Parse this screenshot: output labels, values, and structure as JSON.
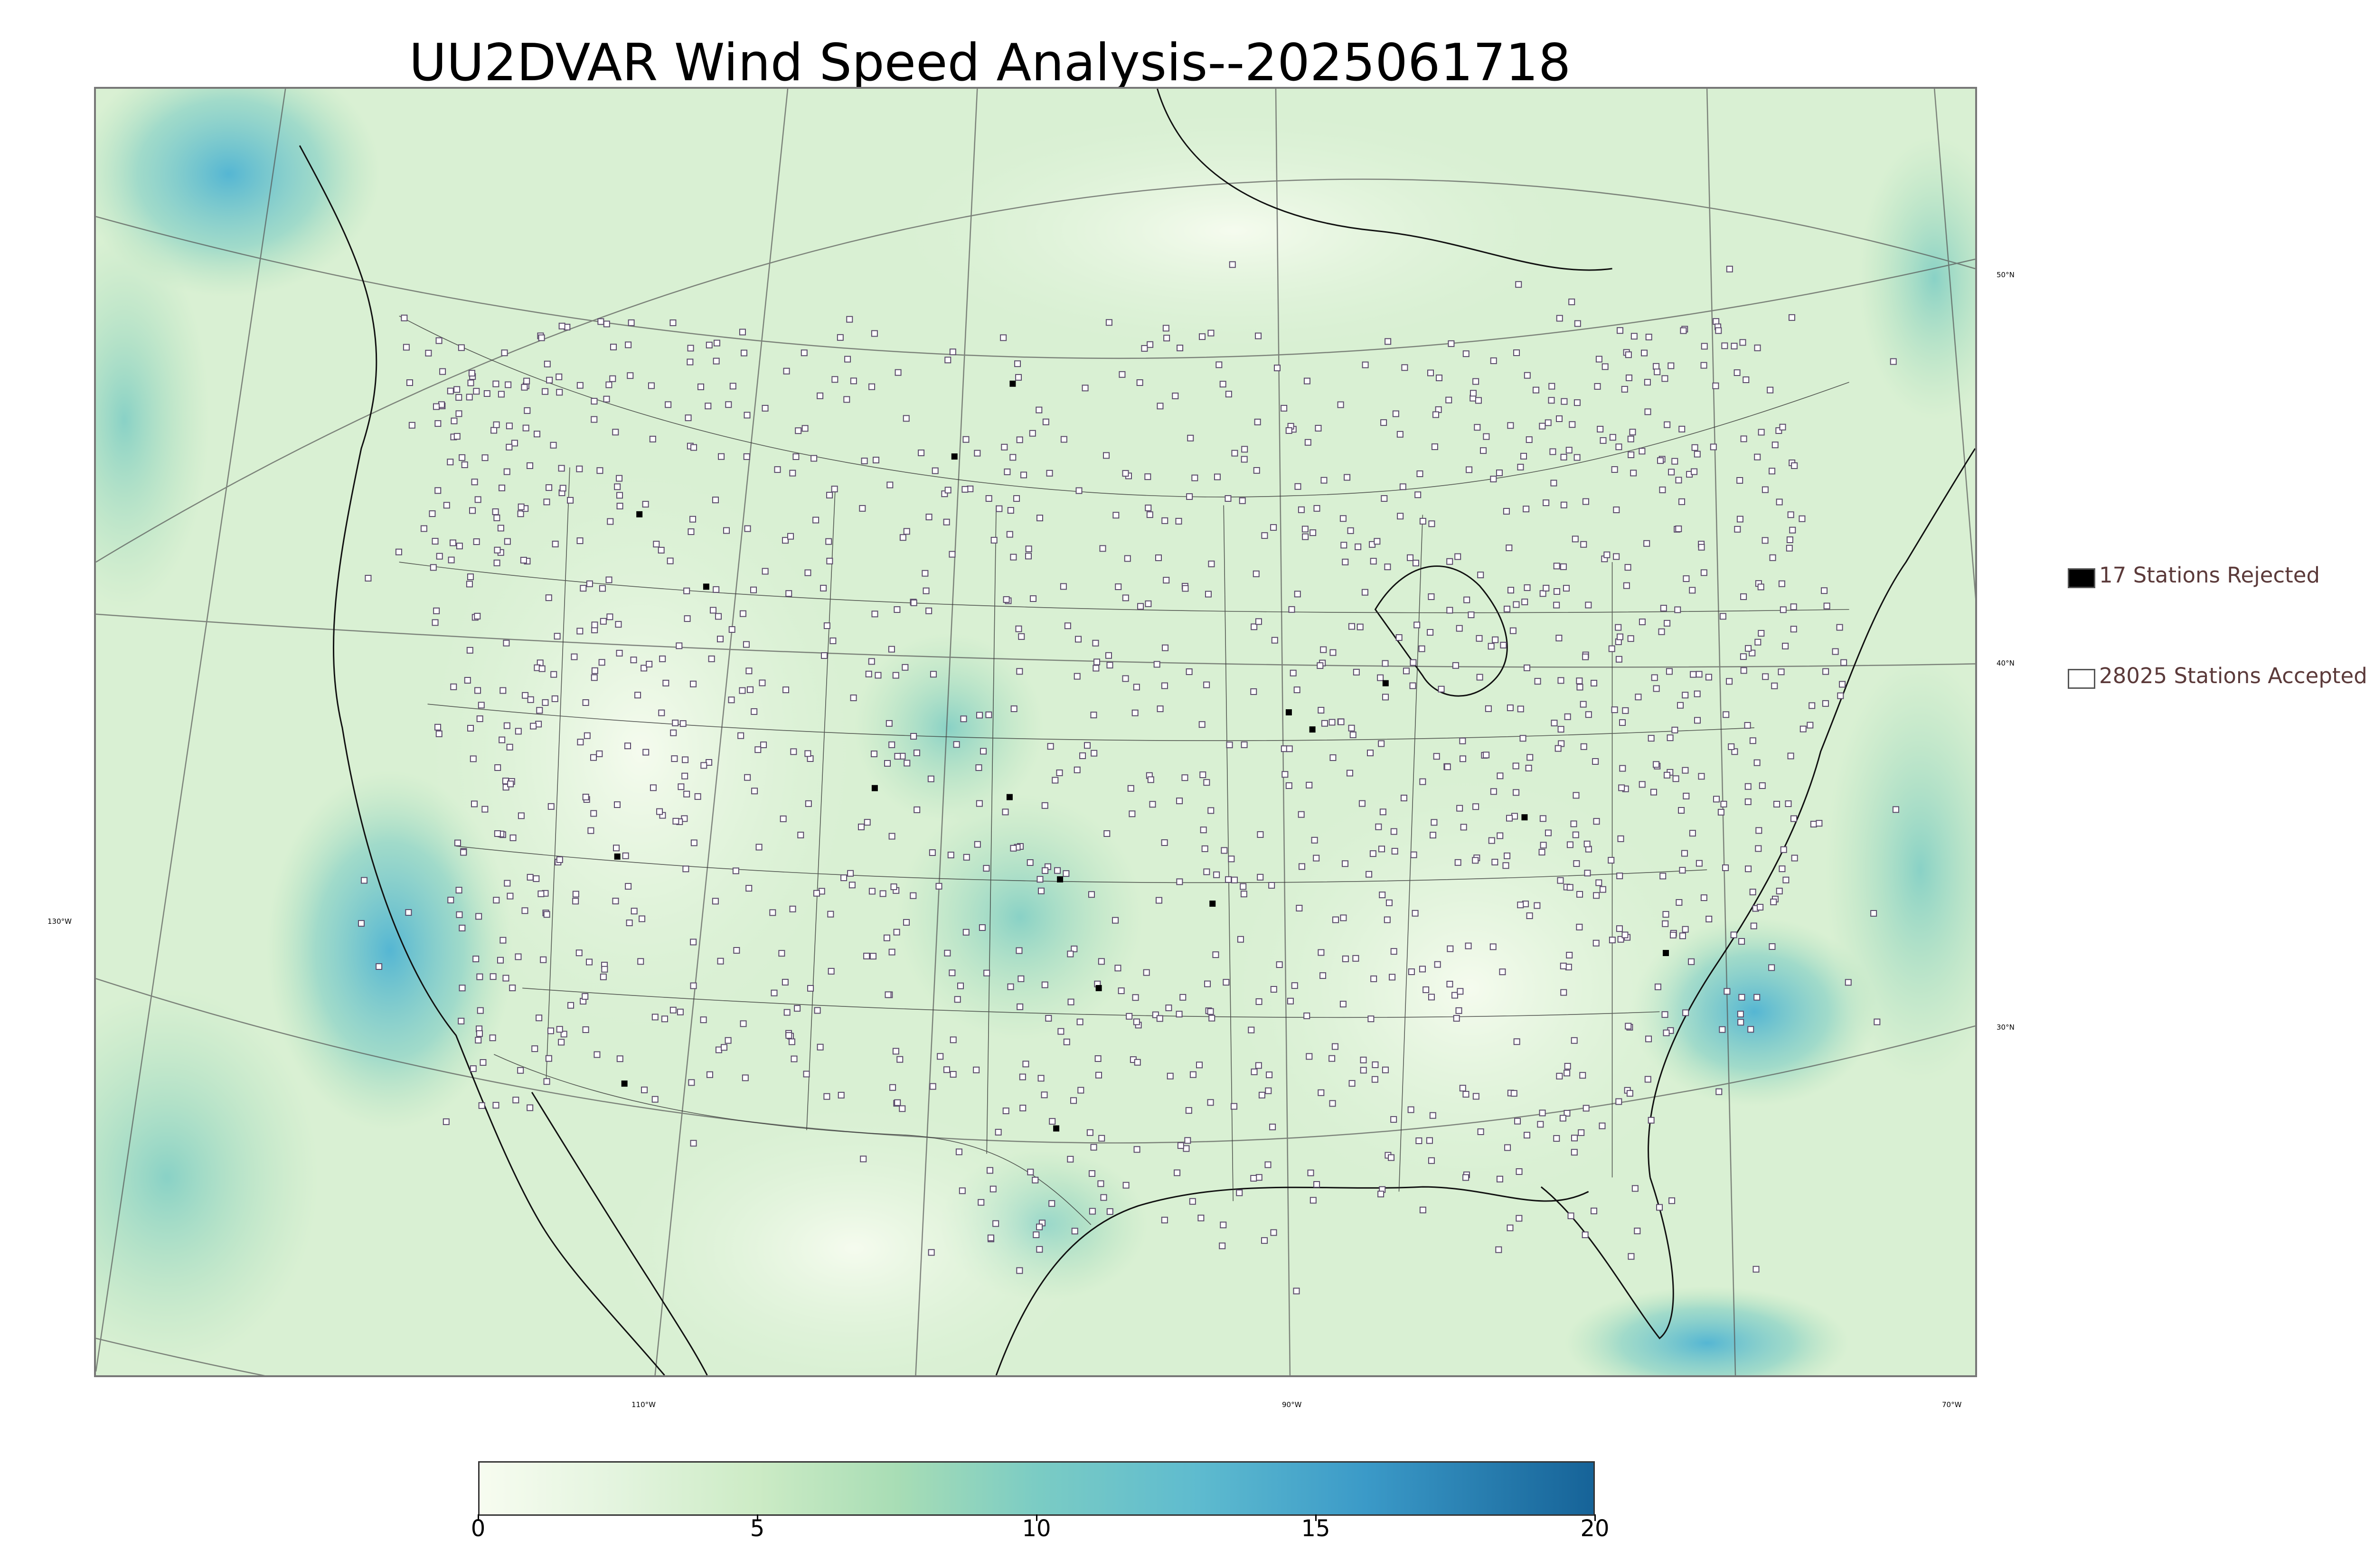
{
  "title": "UU2DVAR Wind Speed Analysis--2025061718",
  "map": {
    "lon_labels": [
      "110°W",
      "90°W",
      "70°W"
    ],
    "lat_labels": [
      "50°N",
      "40°N",
      "30°N"
    ],
    "west_label": "130°W",
    "palette": [
      "#f7fcf0",
      "#e0f3db",
      "#ccebc5",
      "#a8ddb5",
      "#7bccc4",
      "#4eb3d3",
      "#2b8cbe",
      "#08589e"
    ]
  },
  "legend": {
    "rejected_label": "17 Stations Rejected",
    "accepted_label": "28025 Stations Accepted",
    "rejected_color": "#000000",
    "accepted_color": "#ffffff"
  },
  "colorbar": {
    "min": 0,
    "max": 20,
    "tick_labels": [
      "0",
      "5",
      "10",
      "15",
      "20"
    ],
    "color_stops": [
      {
        "value": 0,
        "color": "#f7fcf0"
      },
      {
        "value": 2.5,
        "color": "#e3f4de"
      },
      {
        "value": 5,
        "color": "#ccebc5"
      },
      {
        "value": 7.5,
        "color": "#a8ddb5"
      },
      {
        "value": 10,
        "color": "#7bccc4"
      },
      {
        "value": 12.9,
        "color": "#5ebbcf"
      },
      {
        "value": 15.9,
        "color": "#3b9ac8"
      },
      {
        "value": 20,
        "color": "#166398"
      }
    ]
  }
}
